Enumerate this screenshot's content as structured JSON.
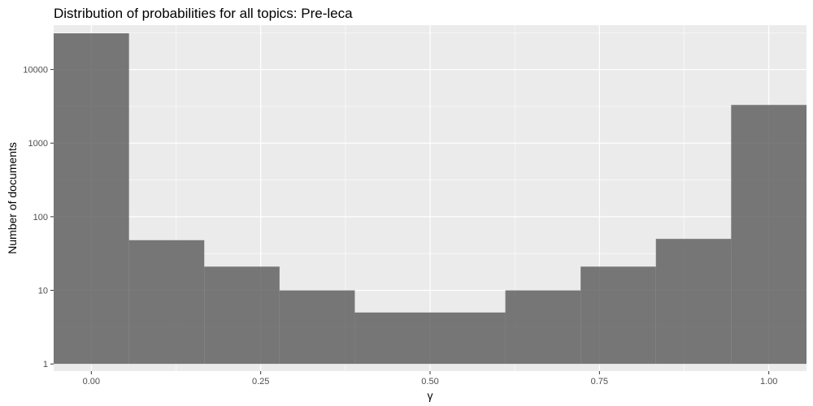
{
  "chart_data": {
    "type": "bar",
    "title": "Distribution of probabilities for all topics: Pre-leca",
    "xlabel": "γ",
    "ylabel": "Number of documents",
    "y_scale": "log10",
    "xlim": [
      -0.0556,
      1.0556
    ],
    "ylim": [
      0.8,
      40000
    ],
    "x_ticks": [
      0,
      0.25,
      0.5,
      0.75,
      1
    ],
    "x_tick_labels": [
      "0.00",
      "0.25",
      "0.50",
      "0.75",
      "1.00"
    ],
    "y_ticks": [
      1,
      10,
      100,
      1000,
      10000
    ],
    "y_tick_labels": [
      "1",
      "10",
      "100",
      "1000",
      "10000"
    ],
    "bin_edges": [
      -0.0556,
      0.0556,
      0.1667,
      0.2778,
      0.3889,
      0.5,
      0.6111,
      0.7222,
      0.8333,
      0.9444,
      1.0556
    ],
    "values": [
      31000,
      48,
      21,
      10,
      5,
      5,
      10,
      21,
      50,
      3300
    ],
    "bar_color": "#595959",
    "panel_background": "#ebebeb",
    "grid": true,
    "legend": "none"
  }
}
